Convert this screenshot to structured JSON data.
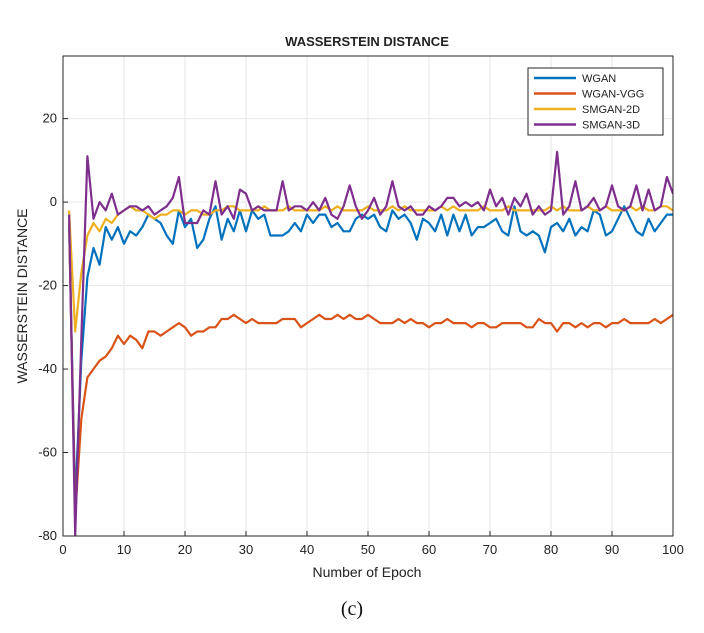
{
  "chart_data": {
    "type": "line",
    "title": "WASSERSTEIN DISTANCE",
    "xlabel": "Number of Epoch",
    "ylabel": "WASSERSTEIN DISTANCE",
    "xlim": [
      0,
      100
    ],
    "ylim": [
      -80,
      35
    ],
    "xticks": [
      0,
      10,
      20,
      30,
      40,
      50,
      60,
      70,
      80,
      90,
      100
    ],
    "yticks": [
      -80,
      -60,
      -40,
      -20,
      0,
      20
    ],
    "grid": true,
    "legend_position": "top-right",
    "x": [
      1,
      2,
      3,
      4,
      5,
      6,
      7,
      8,
      9,
      10,
      11,
      12,
      13,
      14,
      15,
      16,
      17,
      18,
      19,
      20,
      21,
      22,
      23,
      24,
      25,
      26,
      27,
      28,
      29,
      30,
      31,
      32,
      33,
      34,
      35,
      36,
      37,
      38,
      39,
      40,
      41,
      42,
      43,
      44,
      45,
      46,
      47,
      48,
      49,
      50,
      51,
      52,
      53,
      54,
      55,
      56,
      57,
      58,
      59,
      60,
      61,
      62,
      63,
      64,
      65,
      66,
      67,
      68,
      69,
      70,
      71,
      72,
      73,
      74,
      75,
      76,
      77,
      78,
      79,
      80,
      81,
      82,
      83,
      84,
      85,
      86,
      87,
      88,
      89,
      90,
      91,
      92,
      93,
      94,
      95,
      96,
      97,
      98,
      99,
      100
    ],
    "series": [
      {
        "name": "WGAN",
        "color": "#0072BD",
        "values": [
          -5,
          -72,
          -38,
          -18,
          -11,
          -15,
          -6,
          -9,
          -6,
          -10,
          -7,
          -8,
          -6,
          -3,
          -4,
          -5,
          -8,
          -10,
          -2,
          -6,
          -4,
          -11,
          -9,
          -4,
          -1,
          -9,
          -4,
          -7,
          -2,
          -7,
          -2,
          -4,
          -3,
          -8,
          -8,
          -8,
          -7,
          -5,
          -7,
          -3,
          -5,
          -3,
          -3,
          -6,
          -5,
          -7,
          -7,
          -4,
          -3,
          -4,
          -3,
          -6,
          -7,
          -2,
          -4,
          -3,
          -5,
          -9,
          -4,
          -5,
          -7,
          -3,
          -8,
          -3,
          -7,
          -3,
          -8,
          -6,
          -6,
          -5,
          -4,
          -7,
          -8,
          -1,
          -7,
          -8,
          -7,
          -8,
          -12,
          -6,
          -5,
          -7,
          -4,
          -8,
          -6,
          -7,
          -2,
          -3,
          -8,
          -7,
          -4,
          -1,
          -4,
          -7,
          -8,
          -4,
          -7,
          -5,
          -3,
          -3
        ]
      },
      {
        "name": "WGAN-VGG",
        "color": "#D95319",
        "values": [
          -5,
          -75,
          -52,
          -42,
          -40,
          -38,
          -37,
          -35,
          -32,
          -34,
          -32,
          -33,
          -35,
          -31,
          -31,
          -32,
          -31,
          -30,
          -29,
          -30,
          -32,
          -31,
          -31,
          -30,
          -30,
          -28,
          -28,
          -27,
          -28,
          -29,
          -28,
          -29,
          -29,
          -29,
          -29,
          -28,
          -28,
          -28,
          -30,
          -29,
          -28,
          -27,
          -28,
          -28,
          -27,
          -28,
          -27,
          -28,
          -28,
          -27,
          -28,
          -29,
          -29,
          -29,
          -28,
          -29,
          -28,
          -29,
          -29,
          -30,
          -29,
          -29,
          -28,
          -29,
          -29,
          -29,
          -30,
          -29,
          -29,
          -30,
          -30,
          -29,
          -29,
          -29,
          -29,
          -30,
          -30,
          -28,
          -29,
          -29,
          -31,
          -29,
          -29,
          -30,
          -29,
          -30,
          -29,
          -29,
          -30,
          -29,
          -29,
          -28,
          -29,
          -29,
          -29,
          -29,
          -28,
          -29,
          -28,
          -27
        ]
      },
      {
        "name": "SMGAN-2D",
        "color": "#EDB120",
        "values": [
          -2,
          -31,
          -17,
          -8,
          -5,
          -7,
          -4,
          -5,
          -3,
          -2,
          -1,
          -2,
          -2,
          -3,
          -4,
          -3,
          -3,
          -2,
          -2,
          -3,
          -2,
          -2,
          -3,
          -3,
          -2,
          -2,
          -1,
          -1,
          -2,
          -2,
          -2,
          -2,
          -1,
          -2,
          -2,
          -2,
          -1,
          -2,
          -2,
          -2,
          -2,
          -2,
          -1,
          -2,
          -1,
          -2,
          -2,
          -2,
          -2,
          -1,
          -2,
          -2,
          -2,
          -1,
          -2,
          -1,
          -2,
          -2,
          -2,
          -2,
          -2,
          -1,
          -2,
          -1,
          -2,
          -2,
          -2,
          -2,
          -1,
          -2,
          -2,
          -2,
          -1,
          -2,
          -2,
          -2,
          -2,
          -2,
          -2,
          -1,
          -2,
          -1,
          -2,
          -2,
          -2,
          -1,
          -2,
          -2,
          -1,
          -2,
          -2,
          -2,
          -1,
          -2,
          -1,
          -2,
          -2,
          -1,
          -1,
          -2
        ]
      },
      {
        "name": "SMGAN-3D",
        "color": "#7E2F8E",
        "values": [
          -3,
          -80,
          -33,
          11,
          -4,
          0,
          -2,
          2,
          -3,
          -2,
          -1,
          -1,
          -2,
          -1,
          -3,
          -2,
          -1,
          1,
          6,
          -5,
          -5,
          -5,
          -2,
          -3,
          5,
          -3,
          -1,
          -4,
          3,
          2,
          -2,
          -1,
          -2,
          -2,
          -2,
          5,
          -2,
          -1,
          -1,
          -2,
          0,
          -2,
          1,
          -3,
          -4,
          -1,
          4,
          -1,
          -4,
          -2,
          1,
          -3,
          -1,
          5,
          -1,
          -2,
          -1,
          -3,
          -3,
          -1,
          -2,
          -1,
          1,
          1,
          -1,
          0,
          -1,
          0,
          -2,
          3,
          -1,
          1,
          -3,
          1,
          -1,
          2,
          -3,
          -1,
          -3,
          -2,
          12,
          -3,
          -1,
          5,
          -2,
          -1,
          1,
          -2,
          -1,
          4,
          -1,
          -2,
          -1,
          4,
          -2,
          3,
          -2,
          -1,
          6,
          2
        ]
      }
    ]
  },
  "caption": "(c)"
}
